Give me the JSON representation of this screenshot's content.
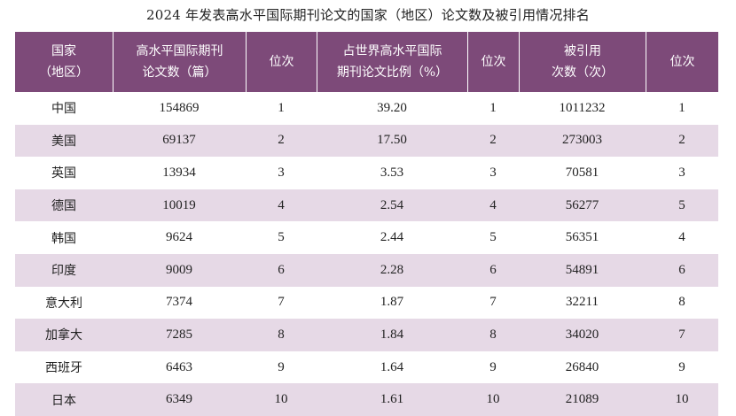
{
  "title": "2024 年发表高水平国际期刊论文的国家（地区）论文数及被引用情况排名",
  "headers": [
    {
      "line1": "国家",
      "line2": "（地区）"
    },
    {
      "line1": "高水平国际期刊",
      "line2": "论文数（篇）"
    },
    {
      "line1": "位次",
      "line2": ""
    },
    {
      "line1": "占世界高水平国际",
      "line2": "期刊论文比例（%）"
    },
    {
      "line1": "位次",
      "line2": ""
    },
    {
      "line1": "被引用",
      "line2": "次数（次）"
    },
    {
      "line1": "位次",
      "line2": ""
    }
  ],
  "rows": [
    {
      "country": "中国",
      "papers": "154869",
      "rank1": "1",
      "share": "39.20",
      "rank2": "1",
      "citations": "1011232",
      "rank3": "1"
    },
    {
      "country": "美国",
      "papers": "69137",
      "rank1": "2",
      "share": "17.50",
      "rank2": "2",
      "citations": "273003",
      "rank3": "2"
    },
    {
      "country": "英国",
      "papers": "13934",
      "rank1": "3",
      "share": "3.53",
      "rank2": "3",
      "citations": "70581",
      "rank3": "3"
    },
    {
      "country": "德国",
      "papers": "10019",
      "rank1": "4",
      "share": "2.54",
      "rank2": "4",
      "citations": "56277",
      "rank3": "5"
    },
    {
      "country": "韩国",
      "papers": "9624",
      "rank1": "5",
      "share": "2.44",
      "rank2": "5",
      "citations": "56351",
      "rank3": "4"
    },
    {
      "country": "印度",
      "papers": "9009",
      "rank1": "6",
      "share": "2.28",
      "rank2": "6",
      "citations": "54891",
      "rank3": "6"
    },
    {
      "country": "意大利",
      "papers": "7374",
      "rank1": "7",
      "share": "1.87",
      "rank2": "7",
      "citations": "32211",
      "rank3": "8"
    },
    {
      "country": "加拿大",
      "papers": "7285",
      "rank1": "8",
      "share": "1.84",
      "rank2": "8",
      "citations": "34020",
      "rank3": "7"
    },
    {
      "country": "西班牙",
      "papers": "6463",
      "rank1": "9",
      "share": "1.64",
      "rank2": "9",
      "citations": "26840",
      "rank3": "9"
    },
    {
      "country": "日本",
      "papers": "6349",
      "rank1": "10",
      "share": "1.61",
      "rank2": "10",
      "citations": "21089",
      "rank3": "10"
    }
  ],
  "colors": {
    "header_bg": "#7d4a79",
    "stripe_bg": "#e6d9e6",
    "header_text": "#ffffff"
  }
}
